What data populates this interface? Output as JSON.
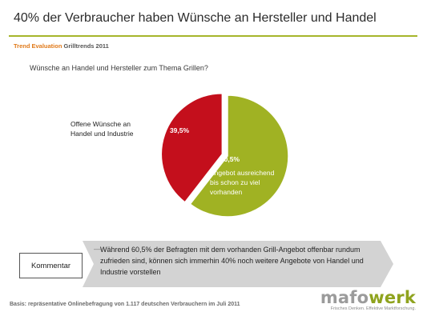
{
  "slide": {
    "title": "40% der Verbraucher haben Wünsche an Hersteller und Handel",
    "subheader_orange": "Trend Evaluation",
    "subheader_gray": "Grilltrends 2011",
    "question": "Wünsche an Handel und Hersteller zum Thema Grillen?",
    "footer": "Basis: repräsentative Onlinebefragung von 1.117 deutschen Verbrauchern im Juli 2011"
  },
  "comment": {
    "label": "Kommentar",
    "dash": "—",
    "text": "Während 60,5% der Befragten mit dem vorhanden Grill-Angebot offenbar rundum zufrieden sind, können sich immerhin 40% noch weitere Angebote von Handel und Industrie vorstellen"
  },
  "logo": {
    "part1": "mafo",
    "part2": "werk",
    "tagline": "Frisches Denken. Effektive Marktforschung."
  },
  "chart_data": {
    "type": "pie",
    "title": "Wünsche an Handel und Hersteller zum Thema Grillen?",
    "slices": [
      {
        "label": "Offene Wünsche an Handel und Industrie",
        "label_lines": [
          "Offene Wünsche an",
          "Handel und Industrie"
        ],
        "value": 39.5,
        "value_label": "39,5%",
        "color": "#c40f1c"
      },
      {
        "label": "Angebot ausreichend bis schon zu viel vorhanden",
        "label_lines": [
          "Angebot ausreichend",
          "bis schon zu viel",
          "vorhanden"
        ],
        "value": 60.5,
        "value_label": "60,5%",
        "color": "#a0b223"
      }
    ]
  }
}
